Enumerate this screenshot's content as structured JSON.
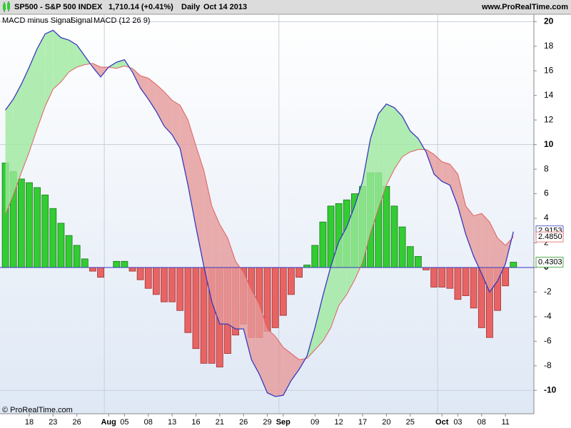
{
  "header": {
    "symbol": "SP500 - S&P 500 INDEX",
    "quote": "1,710.14 (+0.41%)",
    "period": "Daily",
    "date": "Oct 14 2013",
    "site": "www.ProRealTime.com"
  },
  "footer": "© ProRealTime.com",
  "chart_data": {
    "type": "macd",
    "categories": [
      null,
      null,
      null,
      "18",
      null,
      null,
      "23",
      null,
      null,
      "26",
      null,
      null,
      null,
      "Aug",
      null,
      "05",
      null,
      null,
      "08",
      null,
      null,
      "13",
      null,
      null,
      "16",
      null,
      null,
      "21",
      null,
      null,
      "26",
      null,
      null,
      "29",
      null,
      "Sep",
      null,
      null,
      null,
      "09",
      null,
      null,
      "12",
      null,
      null,
      "17",
      null,
      null,
      "20",
      null,
      null,
      "25",
      null,
      null,
      null,
      "Oct",
      null,
      "03",
      null,
      null,
      "08",
      null,
      null,
      "11",
      null
    ],
    "series": [
      {
        "name": "MACD minus Signal",
        "color": "#33cc33",
        "negative_color": "#e86464",
        "values": [
          8.5,
          7.8,
          7.2,
          6.9,
          6.5,
          5.9,
          4.8,
          3.6,
          2.6,
          1.8,
          0.7,
          -0.3,
          -0.8,
          0.0,
          0.5,
          0.5,
          -0.3,
          -1.0,
          -1.7,
          -2.2,
          -2.8,
          -2.8,
          -3.5,
          -5.3,
          -6.6,
          -7.8,
          -7.8,
          -8.1,
          -7.0,
          -5.5,
          -4.6,
          -5.7,
          -5.7,
          -5.2,
          -4.9,
          -3.9,
          -2.2,
          -0.8,
          0.2,
          1.8,
          3.7,
          5.0,
          5.2,
          5.5,
          6.0,
          6.6,
          7.7,
          7.7,
          6.6,
          5.0,
          3.3,
          1.7,
          0.9,
          -0.2,
          -1.6,
          -1.6,
          -1.7,
          -2.6,
          -2.3,
          -3.3,
          -4.9,
          -5.7,
          -3.5,
          -1.5,
          0.4303
        ]
      },
      {
        "name": "Signal",
        "color": "#e06060",
        "values": [
          4.3,
          5.9,
          7.7,
          9.4,
          11.3,
          13.1,
          14.5,
          15.1,
          15.9,
          16.3,
          16.5,
          16.6,
          16.3,
          16.3,
          16.2,
          16.4,
          16.2,
          15.6,
          15.4,
          14.9,
          14.3,
          13.6,
          13.2,
          12.0,
          9.9,
          7.9,
          5.0,
          3.5,
          2.4,
          0.5,
          -0.4,
          -1.8,
          -3.0,
          -5.0,
          -5.6,
          -6.5,
          -7.0,
          -7.5,
          -7.4,
          -6.7,
          -6.0,
          -4.9,
          -3.1,
          -2.2,
          -1.0,
          0.4,
          2.8,
          4.8,
          6.7,
          8.0,
          9.0,
          9.4,
          9.6,
          9.6,
          9.2,
          8.6,
          8.4,
          7.6,
          5.0,
          4.2,
          4.4,
          3.7,
          2.4,
          1.8,
          2.485
        ],
        "value_labels": [
          null,
          null,
          null,
          null,
          null,
          null,
          null,
          null,
          null,
          null,
          null,
          null,
          null,
          null,
          null,
          null,
          null,
          null,
          null,
          null,
          null,
          null,
          null,
          null,
          null,
          null,
          null,
          null,
          null,
          null,
          null,
          null,
          null,
          null,
          null,
          null,
          null,
          null,
          null,
          null,
          null,
          null,
          null,
          null,
          null,
          null,
          null,
          null,
          null,
          null,
          null,
          null,
          null,
          null,
          null,
          null,
          null,
          null,
          null,
          null,
          null,
          null,
          null,
          null,
          "2.4850"
        ]
      },
      {
        "name": "MACD (12 26 9)",
        "color": "#3838c0",
        "values": [
          12.8,
          13.7,
          14.9,
          16.3,
          17.8,
          19.0,
          19.3,
          18.7,
          18.5,
          18.1,
          17.2,
          16.3,
          15.5,
          16.3,
          16.7,
          16.9,
          15.9,
          14.6,
          13.7,
          12.7,
          11.5,
          10.8,
          9.7,
          6.7,
          3.3,
          0.1,
          -2.8,
          -4.6,
          -4.6,
          -5.0,
          -5.0,
          -7.5,
          -8.7,
          -10.2,
          -10.5,
          -10.4,
          -9.2,
          -8.3,
          -7.2,
          -4.9,
          -2.3,
          0.1,
          2.1,
          3.3,
          5.0,
          7.0,
          10.5,
          12.5,
          13.3,
          13.0,
          12.3,
          11.1,
          10.5,
          9.4,
          7.6,
          7.0,
          6.7,
          5.0,
          2.7,
          0.9,
          -0.5,
          -2.0,
          -1.1,
          0.3,
          2.9153
        ]
      }
    ],
    "fill_colors": {
      "above": "#9ee89e",
      "below": "#e69a9a"
    },
    "ylim": [
      -11.9,
      20.6
    ],
    "yticks": [
      -10,
      -8,
      -6,
      -4,
      -2,
      0,
      2,
      4,
      6,
      8,
      10,
      12,
      14,
      16,
      18,
      20
    ]
  }
}
